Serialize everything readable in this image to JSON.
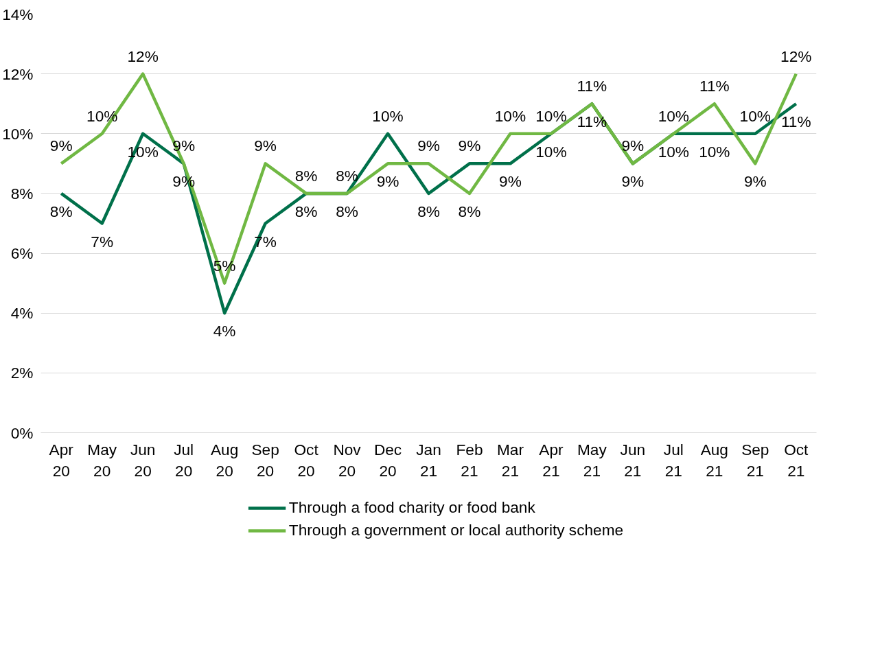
{
  "chart_data": {
    "type": "line",
    "categories": [
      "Apr 20",
      "May 20",
      "Jun 20",
      "Jul 20",
      "Aug 20",
      "Sep 20",
      "Oct 20",
      "Nov 20",
      "Dec 20",
      "Jan 21",
      "Feb 21",
      "Mar 21",
      "Apr 21",
      "May 21",
      "Jun 21",
      "Jul 21",
      "Aug 21",
      "Sep 21",
      "Oct 21"
    ],
    "series": [
      {
        "name": "Through a food charity or food bank",
        "color": "#00704a",
        "values": [
          8,
          7,
          10,
          9,
          4,
          7,
          8,
          8,
          10,
          8,
          9,
          9,
          10,
          11,
          9,
          10,
          10,
          10,
          11
        ],
        "value_labels": [
          "8%",
          "7%",
          "10%",
          "9%",
          "4%",
          "7%",
          "8%",
          "8%",
          "10%",
          "8%",
          "9%",
          "9%",
          "10%",
          "11%",
          "9%",
          "10%",
          "10%",
          "10%",
          "11%"
        ]
      },
      {
        "name": "Through a government or local authority scheme",
        "color": "#70b843",
        "values": [
          9,
          10,
          12,
          9,
          5,
          9,
          8,
          8,
          9,
          9,
          8,
          10,
          10,
          11,
          9,
          10,
          11,
          9,
          12
        ],
        "value_labels": [
          "9%",
          "10%",
          "12%",
          "9%",
          "5%",
          "9%",
          "8%",
          "8%",
          "9%",
          "9%",
          "8%",
          "10%",
          "10%",
          "11%",
          "9%",
          "10%",
          "11%",
          "9%",
          "12%"
        ]
      }
    ],
    "ylim": [
      0,
      14
    ],
    "yticks": [
      {
        "value": 0,
        "label": "0%"
      },
      {
        "value": 2,
        "label": "2%"
      },
      {
        "value": 4,
        "label": "4%"
      },
      {
        "value": 6,
        "label": "6%"
      },
      {
        "value": 8,
        "label": "8%"
      },
      {
        "value": 10,
        "label": "10%"
      },
      {
        "value": 12,
        "label": "12%"
      },
      {
        "value": 14,
        "label": "14%"
      }
    ],
    "grid": "y",
    "legend": "bottom",
    "marker": "none",
    "line_style": "solid"
  }
}
